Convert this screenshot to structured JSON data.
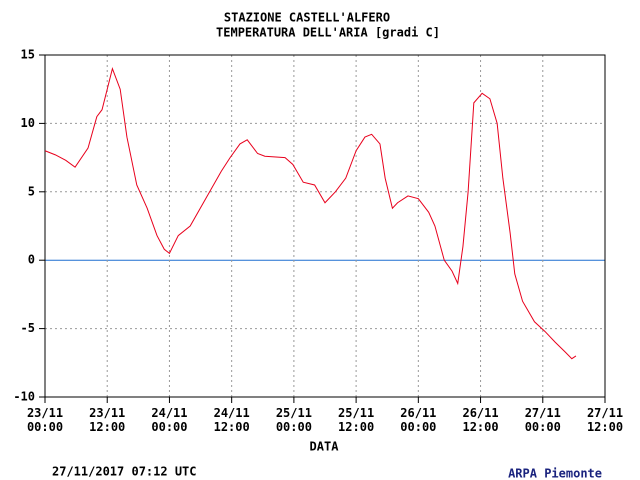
{
  "chart_data": {
    "type": "line",
    "title": "STAZIONE CASTELL'ALFERO",
    "subtitle": "TEMPERATURA DELL'ARIA [gradi C]",
    "xlabel": "DATA",
    "footer_left": "27/11/2017 07:12 UTC",
    "footer_right": "ARPA Piemonte",
    "x": [
      0,
      2,
      4,
      5.8,
      8.3,
      10,
      11,
      13,
      14.5,
      15.8,
      17.7,
      19.7,
      21.6,
      23,
      24,
      25.7,
      28,
      31,
      34,
      35.7,
      37.6,
      39,
      41,
      42.4,
      46.3,
      47.8,
      49.8,
      52,
      54,
      56,
      58,
      60,
      61.7,
      63,
      64.6,
      65.6,
      67,
      68,
      70,
      72,
      74,
      75.2,
      77,
      78.5,
      79.6,
      80.6,
      81.6,
      82.7,
      84.3,
      85.8,
      87.2,
      88.3,
      89.7,
      90.6,
      92.1,
      94.4,
      96.4,
      98.4,
      100.3,
      101.6,
      102.4
    ],
    "series": [
      {
        "name": "TEMPERATURA DELL'ARIA",
        "color": "#e8001c",
        "values": [
          8.0,
          7.7,
          7.3,
          6.8,
          8.2,
          10.5,
          11.0,
          14.0,
          12.5,
          9.0,
          5.5,
          3.8,
          1.8,
          0.8,
          0.5,
          1.8,
          2.5,
          4.5,
          6.5,
          7.5,
          8.5,
          8.8,
          7.8,
          7.6,
          7.5,
          7.0,
          5.7,
          5.5,
          4.2,
          5.0,
          6.0,
          8.0,
          9.0,
          9.2,
          8.5,
          6.0,
          3.8,
          4.2,
          4.7,
          4.5,
          3.5,
          2.5,
          0.0,
          -0.8,
          -1.7,
          1.0,
          5.0,
          11.5,
          12.2,
          11.8,
          10.0,
          6.0,
          2.0,
          -1.0,
          -3.0,
          -4.5,
          -5.2,
          -6.0,
          -6.7,
          -7.2,
          -7.0
        ]
      }
    ],
    "xlim": [
      0,
      108
    ],
    "xticks": [
      {
        "value": 0,
        "label": "23/11\n00:00"
      },
      {
        "value": 12,
        "label": "23/11\n12:00"
      },
      {
        "value": 24,
        "label": "24/11\n00:00"
      },
      {
        "value": 36,
        "label": "24/11\n12:00"
      },
      {
        "value": 48,
        "label": "25/11\n00:00"
      },
      {
        "value": 60,
        "label": "25/11\n12:00"
      },
      {
        "value": 72,
        "label": "26/11\n00:00"
      },
      {
        "value": 84,
        "label": "26/11\n12:00"
      },
      {
        "value": 96,
        "label": "27/11\n00:00"
      },
      {
        "value": 108,
        "label": "27/11\n12:00"
      }
    ],
    "ylim": [
      -10,
      15
    ],
    "yticks": [
      -10,
      -5,
      0,
      5,
      10,
      15
    ],
    "grid": true,
    "zero_line_color": "#1f6fd0"
  }
}
